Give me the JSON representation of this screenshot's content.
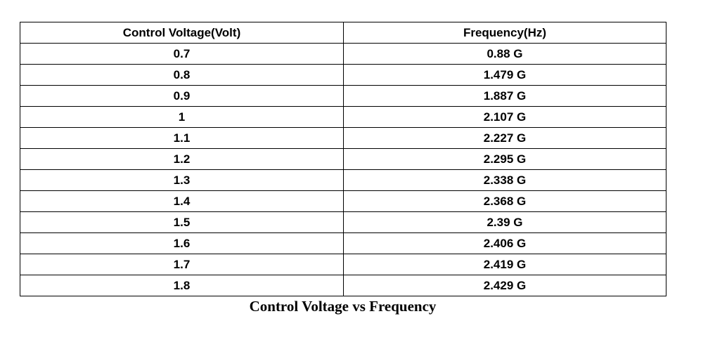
{
  "table": {
    "headers": [
      "Control Voltage(Volt)",
      "Frequency(Hz)"
    ],
    "rows": [
      [
        "0.7",
        "0.88 G"
      ],
      [
        "0.8",
        "1.479 G"
      ],
      [
        "0.9",
        "1.887 G"
      ],
      [
        "1",
        "2.107 G"
      ],
      [
        "1.1",
        "2.227 G"
      ],
      [
        "1.2",
        "2.295 G"
      ],
      [
        "1.3",
        "2.338 G"
      ],
      [
        "1.4",
        "2.368 G"
      ],
      [
        "1.5",
        "2.39 G"
      ],
      [
        "1.6",
        "2.406 G"
      ],
      [
        "1.7",
        "2.419 G"
      ],
      [
        "1.8",
        "2.429 G"
      ]
    ]
  },
  "caption": "Control Voltage vs Frequency"
}
